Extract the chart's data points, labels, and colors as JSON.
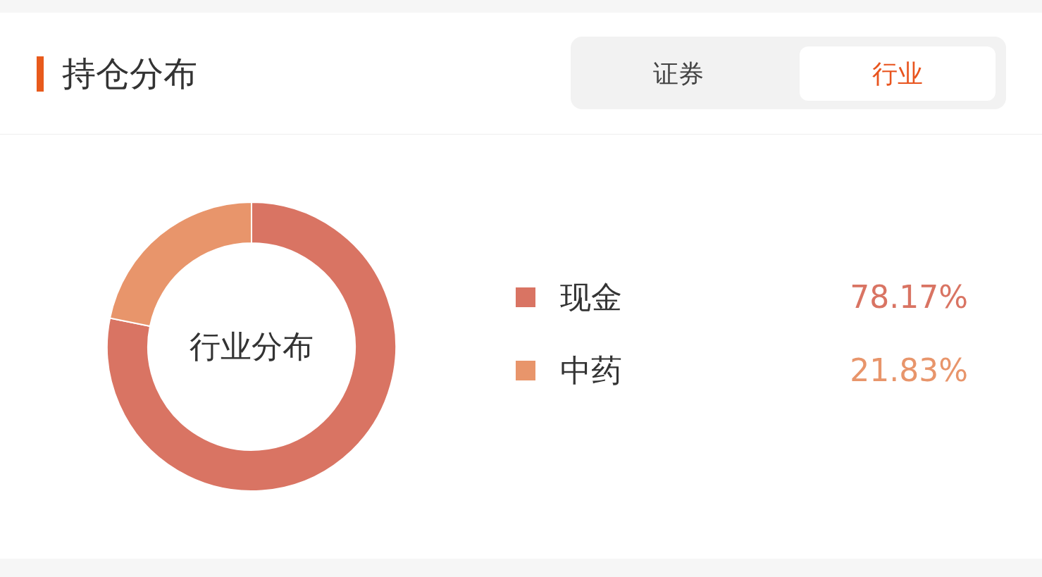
{
  "chart_data": {
    "type": "donut",
    "title": "持仓分布",
    "subtitle": "行业分布",
    "annotations": [
      "证券",
      "行业"
    ],
    "categories": [
      "现金",
      "中药"
    ],
    "values": [
      78.17,
      21.83
    ],
    "value_labels": [
      "78.17%",
      "21.83%"
    ],
    "colors": [
      "#d97463",
      "#e8956b"
    ],
    "legend": "right"
  }
}
